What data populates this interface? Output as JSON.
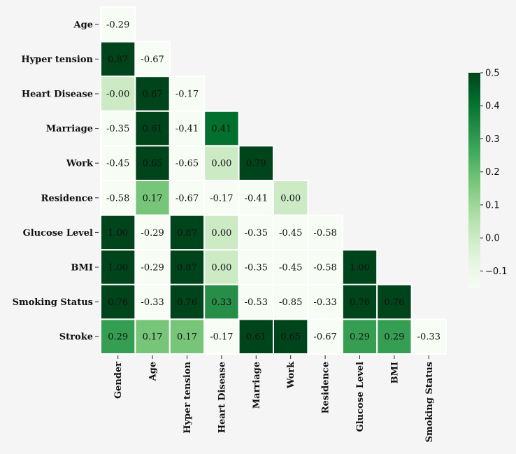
{
  "chart_data": {
    "type": "heatmap",
    "title": "",
    "xlabel": "",
    "ylabel": "",
    "mask": "upper-triangle",
    "colormap": "Greens",
    "vmin": -0.15,
    "vmax": 0.5,
    "y_labels": [
      "Age",
      "Hyper tension",
      "Heart Disease",
      "Marriage",
      "Work",
      "Residence",
      "Glucose Level",
      "BMI",
      "Smoking Status",
      "Stroke"
    ],
    "x_labels": [
      "Gender",
      "Age",
      "Hyper tension",
      "Heart Disease",
      "Marriage",
      "Work",
      "Residence",
      "Glucose Level",
      "BMI",
      "Smoking Status"
    ],
    "rows": [
      {
        "label": "Age",
        "values": [
          -0.29
        ]
      },
      {
        "label": "Hyper tension",
        "values": [
          0.87,
          -0.67
        ]
      },
      {
        "label": "Heart Disease",
        "values": [
          -0.0,
          0.67,
          -0.17
        ]
      },
      {
        "label": "Marriage",
        "values": [
          -0.35,
          0.61,
          -0.41,
          0.41
        ]
      },
      {
        "label": "Work",
        "values": [
          -0.45,
          0.65,
          -0.65,
          0.0,
          0.79
        ]
      },
      {
        "label": "Residence",
        "values": [
          -0.58,
          0.17,
          -0.67,
          -0.17,
          -0.41,
          0.0
        ]
      },
      {
        "label": "Glucose Level",
        "values": [
          1.0,
          -0.29,
          0.87,
          0.0,
          -0.35,
          -0.45,
          -0.58
        ]
      },
      {
        "label": "BMI",
        "values": [
          1.0,
          -0.29,
          0.87,
          0.0,
          -0.35,
          -0.45,
          -0.58,
          1.0
        ]
      },
      {
        "label": "Smoking Status",
        "values": [
          0.76,
          -0.33,
          0.76,
          0.33,
          -0.53,
          -0.85,
          -0.33,
          0.76,
          0.76
        ]
      },
      {
        "label": "Stroke",
        "values": [
          0.29,
          0.17,
          0.17,
          -0.17,
          0.61,
          0.65,
          -0.67,
          0.29,
          0.29,
          -0.33
        ]
      }
    ],
    "cell_labels": [
      [
        "-0.29"
      ],
      [
        "0.87",
        "-0.67"
      ],
      [
        "-0.00",
        "0.67",
        "-0.17"
      ],
      [
        "-0.35",
        "0.61",
        "-0.41",
        "0.41"
      ],
      [
        "-0.45",
        "0.65",
        "-0.65",
        "0.00",
        "0.79"
      ],
      [
        "-0.58",
        "0.17",
        "-0.67",
        "-0.17",
        "-0.41",
        "0.00"
      ],
      [
        "1.00",
        "-0.29",
        "0.87",
        "0.00",
        "-0.35",
        "-0.45",
        "-0.58"
      ],
      [
        "1.00",
        "-0.29",
        "0.87",
        "0.00",
        "-0.35",
        "-0.45",
        "-0.58",
        "1.00"
      ],
      [
        "0.76",
        "-0.33",
        "0.76",
        "0.33",
        "-0.53",
        "-0.85",
        "-0.33",
        "0.76",
        "0.76"
      ],
      [
        "0.29",
        "0.17",
        "0.17",
        "-0.17",
        "0.61",
        "0.65",
        "-0.67",
        "0.29",
        "0.29",
        "-0.33"
      ]
    ],
    "colorbar": {
      "ticks": [
        0.5,
        0.4,
        0.3,
        0.2,
        0.1,
        0.0,
        -0.1
      ],
      "tick_labels": [
        "0.5",
        "0.4",
        "0.3",
        "0.2",
        "0.1",
        "0.0",
        "−0.1"
      ],
      "placement": "right"
    },
    "colors": {
      "background": "#f5f5f5",
      "cell_border": "#ffffff",
      "text_dark": "#111111"
    }
  }
}
